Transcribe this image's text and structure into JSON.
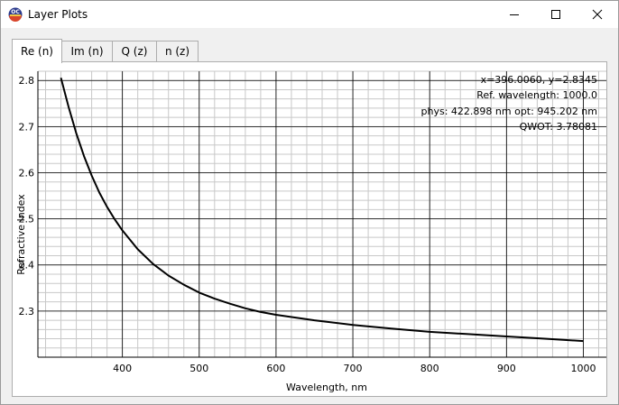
{
  "window": {
    "title": "Layer Plots",
    "icon": "oc-app-icon"
  },
  "tabs": [
    {
      "label": "Re (n)",
      "active": true
    },
    {
      "label": "Im (n)",
      "active": false
    },
    {
      "label": "Q (z)",
      "active": false
    },
    {
      "label": "n (z)",
      "active": false
    }
  ],
  "info": {
    "cursor": "x=396.0060, y=2.8345",
    "ref_wavelength": "Ref. wavelength: 1000.0",
    "phys_opt": "phys: 422.898 nm opt: 945.202 nm",
    "qwot": "QWOT: 3.78081"
  },
  "chart_data": {
    "type": "line",
    "xlabel": "Wavelength, nm",
    "ylabel": "Refractive Index",
    "xlim": [
      290,
      1030
    ],
    "ylim": [
      2.2,
      2.82
    ],
    "x_ticks": [
      400,
      500,
      600,
      700,
      800,
      900,
      1000
    ],
    "y_ticks": [
      2.3,
      2.4,
      2.5,
      2.6,
      2.7,
      2.8
    ],
    "grid": true,
    "series": [
      {
        "color": "#000000",
        "x": [
          320,
          330,
          340,
          350,
          360,
          370,
          380,
          390,
          400,
          420,
          440,
          460,
          480,
          500,
          520,
          540,
          560,
          580,
          600,
          650,
          700,
          750,
          800,
          850,
          900,
          950,
          1000
        ],
        "y": [
          2.806,
          2.742,
          2.685,
          2.636,
          2.594,
          2.557,
          2.526,
          2.499,
          2.475,
          2.434,
          2.402,
          2.377,
          2.357,
          2.34,
          2.327,
          2.316,
          2.306,
          2.298,
          2.292,
          2.28,
          2.27,
          2.262,
          2.255,
          2.25,
          2.245,
          2.24,
          2.235
        ]
      }
    ]
  },
  "colors": {
    "grid_major": "#000000",
    "grid_minor": "#c8c8c8",
    "plot_bg": "#ffffff"
  }
}
